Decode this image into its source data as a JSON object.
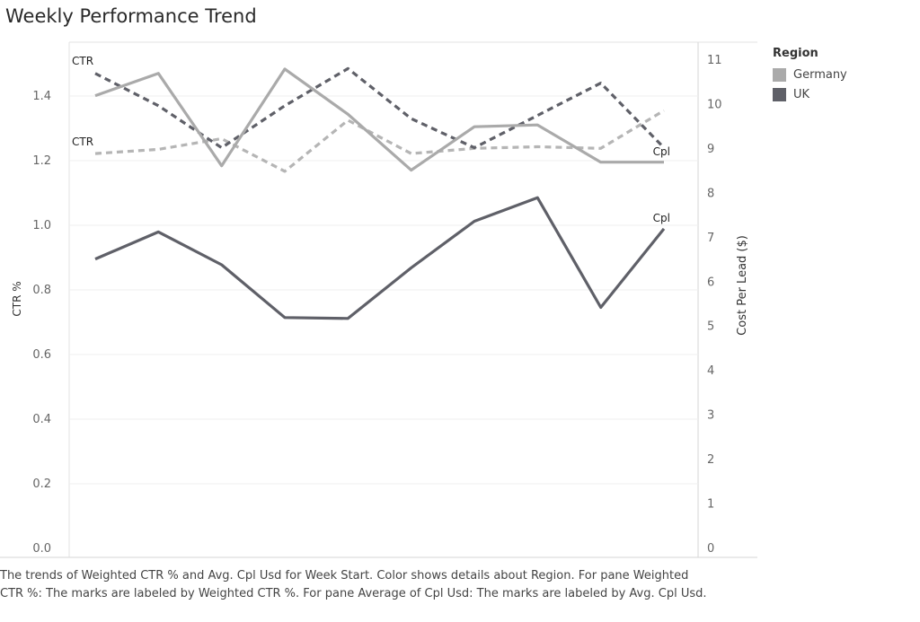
{
  "title": "Weekly Performance Trend",
  "legend": {
    "title": "Region",
    "items": [
      {
        "label": "Germany",
        "color": "#aaaaaa"
      },
      {
        "label": "UK",
        "color": "#5f6068"
      }
    ]
  },
  "caption": "The trends of Weighted CTR % and Avg. Cpl Usd for Week Start.  Color shows details about Region.  For pane Weighted CTR %:  The marks are labeled by Weighted CTR %.  For pane Average of Cpl Usd:  The marks are labeled by Avg. Cpl Usd.",
  "chart_data": {
    "type": "line",
    "x_points": 10,
    "y_left": {
      "label": "CTR %",
      "min": 0,
      "max": 1.54,
      "ticks": [
        0.0,
        0.2,
        0.4,
        0.6,
        0.8,
        1.0,
        1.2,
        1.4
      ],
      "tick_labels": [
        "0.0",
        "0.2",
        "0.4",
        "0.6",
        "0.8",
        "1.0",
        "1.2",
        "1.4"
      ]
    },
    "y_right": {
      "label": "Cost Per Lead ($)",
      "min": 0,
      "max": 11.2,
      "ticks": [
        0,
        1,
        2,
        3,
        4,
        5,
        6,
        7,
        8,
        9,
        10,
        11
      ],
      "tick_labels": [
        "0",
        "1",
        "2",
        "3",
        "4",
        "5",
        "6",
        "7",
        "8",
        "9",
        "10",
        "11"
      ]
    },
    "grid": true,
    "series": [
      {
        "region": "Germany",
        "measure": "CTR",
        "axis": "left",
        "style": "dashed",
        "color": "#b5b5b5",
        "values": [
          1.222,
          1.235,
          1.268,
          1.167,
          1.325,
          1.222,
          1.238,
          1.243,
          1.238,
          1.355
        ],
        "label": "CTR"
      },
      {
        "region": "UK",
        "measure": "CTR",
        "axis": "left",
        "style": "dashed",
        "color": "#5f6068",
        "values": [
          1.47,
          1.37,
          1.24,
          1.37,
          1.485,
          1.33,
          1.24,
          1.34,
          1.44,
          1.24
        ],
        "label": "CTR"
      },
      {
        "region": "Germany",
        "measure": "Cpl",
        "axis": "right",
        "style": "solid",
        "color": "#aaaaaa",
        "values": [
          10.2,
          10.7,
          8.62,
          10.8,
          9.78,
          8.52,
          9.5,
          9.54,
          8.7,
          8.7
        ],
        "label": "Cpl"
      },
      {
        "region": "UK",
        "measure": "Cpl",
        "axis": "right",
        "style": "solid",
        "color": "#5f6068",
        "values": [
          6.52,
          7.13,
          6.39,
          5.2,
          5.18,
          6.32,
          7.37,
          7.9,
          5.43,
          7.2
        ],
        "label": "Cpl"
      }
    ]
  }
}
